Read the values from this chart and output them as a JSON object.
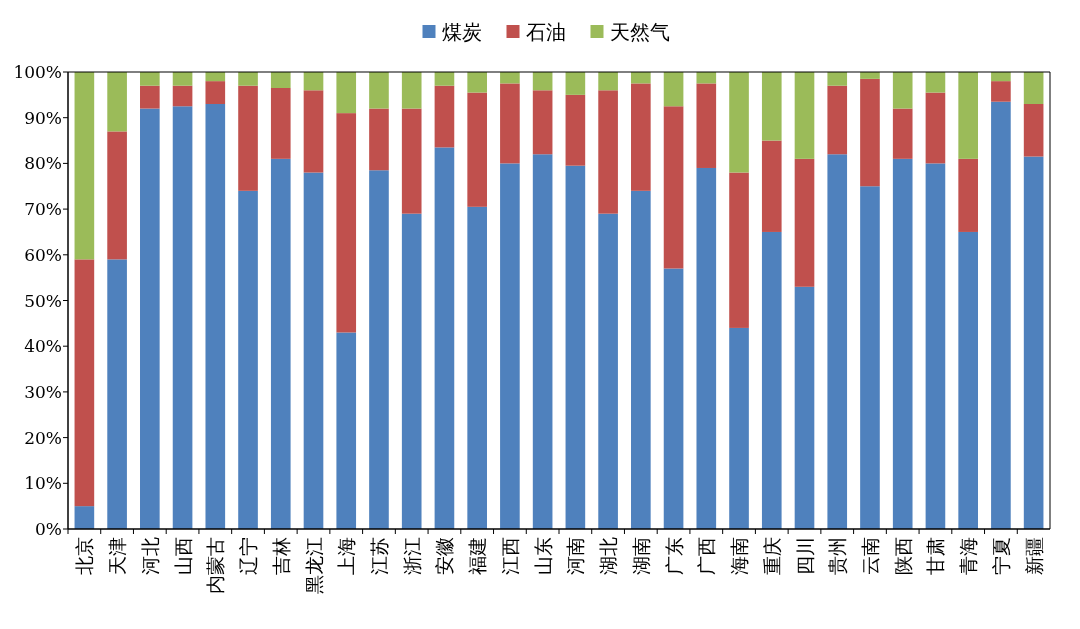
{
  "chart_data": {
    "type": "bar",
    "stacked": true,
    "legend": "top",
    "grid": false,
    "categories": [
      "北京",
      "天津",
      "河北",
      "山西",
      "内蒙古",
      "辽宁",
      "吉林",
      "黑龙江",
      "上海",
      "江苏",
      "浙江",
      "安徽",
      "福建",
      "江西",
      "山东",
      "河南",
      "湖北",
      "湖南",
      "广东",
      "广西",
      "海南",
      "重庆",
      "四川",
      "贵州",
      "云南",
      "陕西",
      "甘肃",
      "青海",
      "宁夏",
      "新疆"
    ],
    "series": [
      {
        "name": "煤炭",
        "color": "#4f81bd",
        "values": [
          5,
          59,
          92,
          92.5,
          93,
          74,
          81,
          78,
          43,
          78.5,
          69,
          83.5,
          70.5,
          80,
          82,
          79.5,
          69,
          74,
          57,
          79,
          44,
          65,
          53,
          82,
          75,
          81,
          80,
          65,
          93.5,
          81.5
        ]
      },
      {
        "name": "石油",
        "color": "#c0504d",
        "values": [
          54,
          28,
          5,
          4.5,
          5,
          23,
          15.5,
          18,
          48,
          13.5,
          23,
          13.5,
          25,
          17.5,
          14,
          15.5,
          27,
          23.5,
          35.5,
          18.5,
          34,
          20,
          28,
          15,
          23.5,
          11,
          15.5,
          16,
          4.5,
          11.5
        ]
      },
      {
        "name": "天然气",
        "color": "#9bbb59",
        "values": [
          41,
          13,
          3,
          3,
          2,
          3,
          3.5,
          4,
          9,
          8,
          8,
          3,
          4.5,
          2.5,
          4,
          5,
          4,
          2.5,
          7.5,
          2.5,
          22,
          15,
          19,
          3,
          1.5,
          8,
          4.5,
          19,
          2,
          7
        ]
      }
    ],
    "ylim": [
      0,
      100
    ],
    "yticks": [
      {
        "value": 0,
        "label": "0%"
      },
      {
        "value": 10,
        "label": "10%"
      },
      {
        "value": 20,
        "label": "20%"
      },
      {
        "value": 30,
        "label": "30%"
      },
      {
        "value": 40,
        "label": "40%"
      },
      {
        "value": 50,
        "label": "50%"
      },
      {
        "value": 60,
        "label": "60%"
      },
      {
        "value": 70,
        "label": "70%"
      },
      {
        "value": 80,
        "label": "80%"
      },
      {
        "value": 90,
        "label": "90%"
      },
      {
        "value": 100,
        "label": "100%"
      }
    ]
  }
}
